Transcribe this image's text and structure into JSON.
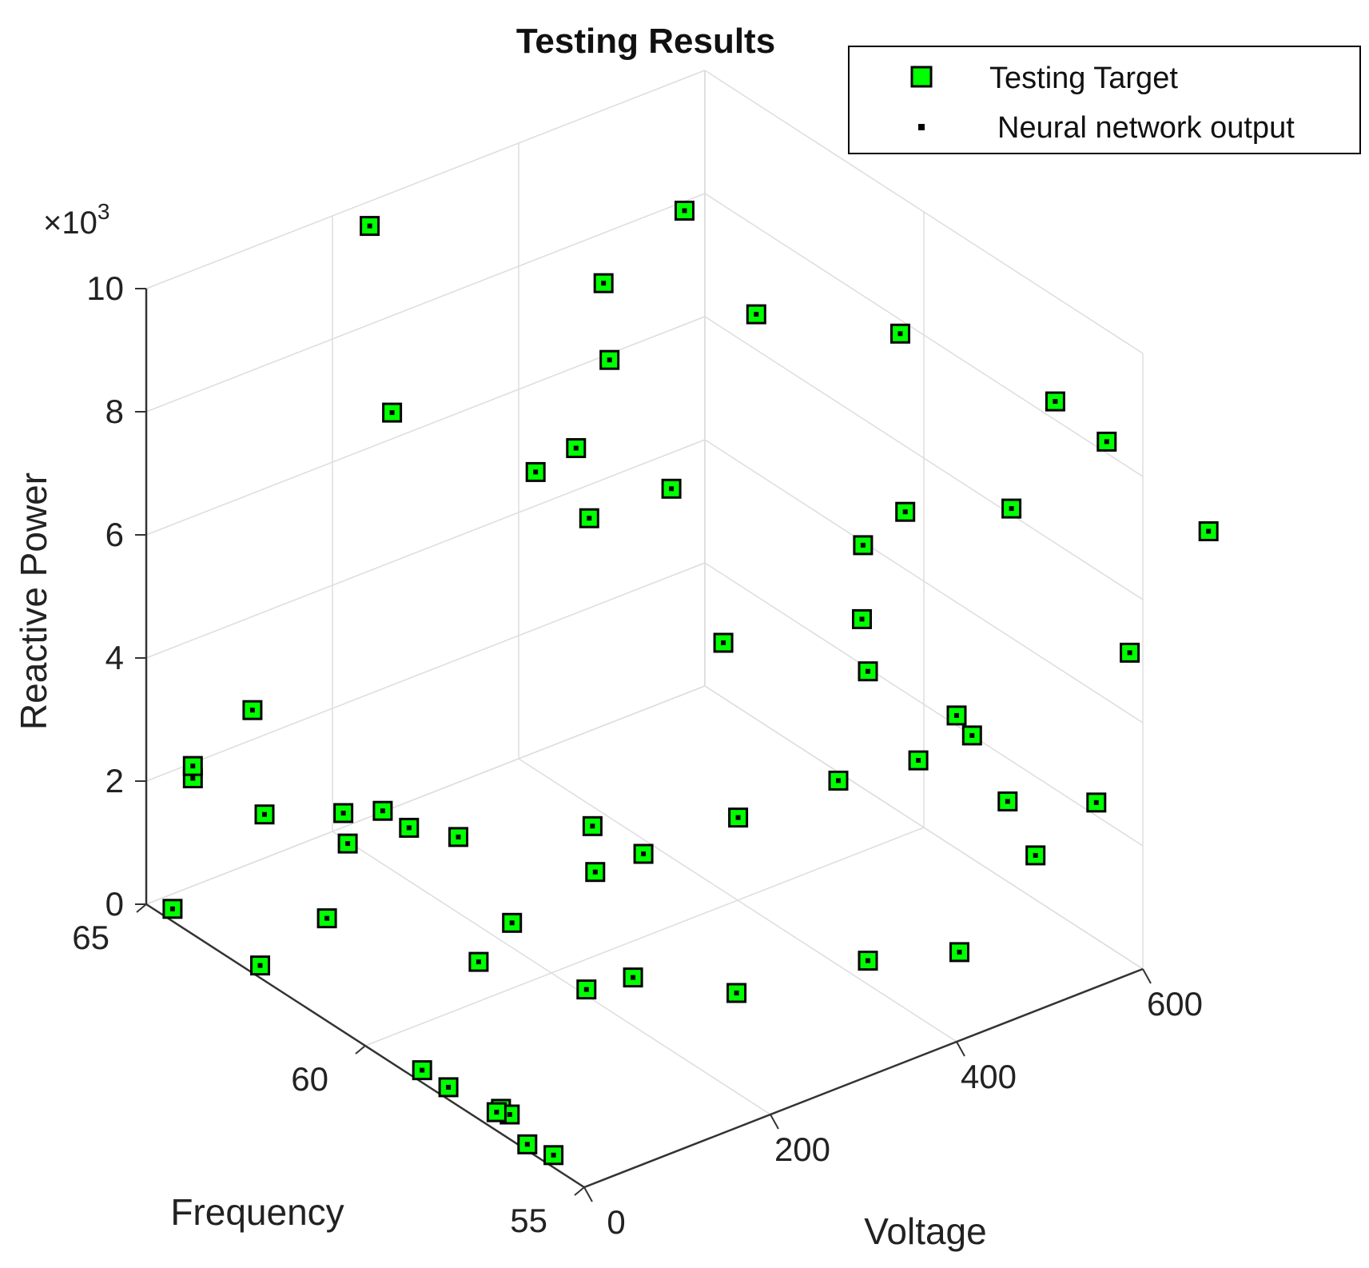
{
  "chart_data": {
    "type": "scatter3d",
    "title": "Testing Results",
    "xlabel": "Voltage",
    "ylabel": "Frequency",
    "zlabel": "Reactive Power",
    "z_exponent_label": "×10",
    "z_exponent_power": "3",
    "xlim": [
      0,
      600
    ],
    "ylim": [
      55,
      65
    ],
    "zlim": [
      0,
      10000
    ],
    "x_ticks": [
      {
        "value": 0,
        "label": "0"
      },
      {
        "value": 200,
        "label": "200"
      },
      {
        "value": 400,
        "label": "400"
      },
      {
        "value": 600,
        "label": "600"
      }
    ],
    "y_ticks": [
      {
        "value": 55,
        "label": "55"
      },
      {
        "value": 60,
        "label": "60"
      },
      {
        "value": 65,
        "label": "65"
      }
    ],
    "z_ticks": [
      {
        "value": 0,
        "label": "0"
      },
      {
        "value": 2000,
        "label": "2"
      },
      {
        "value": 4000,
        "label": "4"
      },
      {
        "value": 6000,
        "label": "6"
      },
      {
        "value": 8000,
        "label": "8"
      },
      {
        "value": 10000,
        "label": "10"
      }
    ],
    "grid": true,
    "legend_position": "top-right",
    "colors": {
      "target_fill": "#00ff00",
      "target_edge": "#000000",
      "output": "#000000",
      "grid": "#dddddd",
      "axis": "#333333"
    },
    "series": [
      {
        "name": "Testing Target",
        "marker": "square",
        "points": [
          [
            0,
            64.4,
            200
          ],
          [
            0,
            62.4,
            200
          ],
          [
            0,
            58.7,
            200
          ],
          [
            0,
            58.1,
            200
          ],
          [
            0,
            55.7,
            200
          ],
          [
            0,
            56.9,
            400
          ],
          [
            0,
            56.7,
            400
          ],
          [
            0,
            56.3,
            100
          ],
          [
            0,
            57.0,
            300
          ],
          [
            100,
            63.0,
            100
          ],
          [
            150,
            60.6,
            200
          ],
          [
            200,
            60.9,
            400
          ],
          [
            200,
            59.2,
            100
          ],
          [
            250,
            59.2,
            0
          ],
          [
            300,
            57.9,
            50
          ],
          [
            380,
            56.6,
            700
          ],
          [
            450,
            56.0,
            700
          ],
          [
            530,
            56.6,
            2400
          ],
          [
            50,
            65,
            1750
          ],
          [
            50,
            65,
            1950
          ],
          [
            0,
            62.3,
            2700
          ],
          [
            0,
            60.4,
            3100
          ],
          [
            0,
            60.5,
            3550
          ],
          [
            0,
            59.6,
            4000
          ],
          [
            0,
            59.0,
            4000
          ],
          [
            100,
            60.0,
            2800
          ],
          [
            150,
            58.0,
            3600
          ],
          [
            250,
            56.8,
            3700
          ],
          [
            200,
            59.0,
            2100
          ],
          [
            200,
            57.9,
            2900
          ],
          [
            400,
            57.7,
            3000
          ],
          [
            500,
            58.0,
            2600
          ],
          [
            600,
            58.9,
            2000
          ],
          [
            480,
            54.9,
            2600
          ],
          [
            550,
            55.0,
            3000
          ],
          [
            230,
            61.0,
            7500
          ],
          [
            310,
            59.6,
            7400
          ],
          [
            250,
            60.2,
            7000
          ],
          [
            170,
            63.0,
            7900
          ],
          [
            250,
            60.5,
            8000
          ],
          [
            300,
            58.2,
            5600
          ],
          [
            430,
            57.8,
            5400
          ],
          [
            600,
            58.0,
            6100
          ],
          [
            450,
            58.2,
            6300
          ],
          [
            500,
            58.3,
            6500
          ],
          [
            380,
            56.6,
            5400
          ],
          [
            400,
            55.0,
            5300
          ],
          [
            600,
            55.3,
            5000
          ],
          [
            240,
            65,
            9600
          ],
          [
            300,
            60.8,
            9000
          ],
          [
            350,
            62.0,
            9400
          ],
          [
            390,
            61.0,
            10800
          ],
          [
            420,
            60.0,
            9400
          ],
          [
            490,
            58.2,
            9500
          ],
          [
            600,
            57.0,
            8300
          ],
          [
            580,
            55.4,
            8500
          ],
          [
            600,
            53.5,
            7800
          ],
          [
            100,
            64.7,
            2700
          ]
        ]
      },
      {
        "name": "Neural network output",
        "marker": "point"
      }
    ]
  }
}
